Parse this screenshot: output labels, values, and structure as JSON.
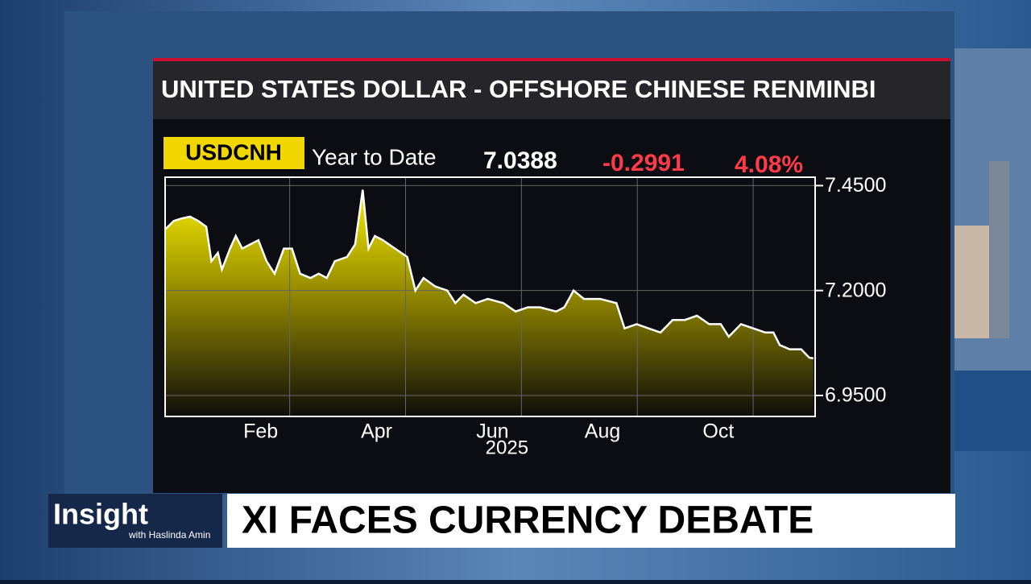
{
  "chart_data": {
    "type": "area",
    "title": "UNITED STATES DOLLAR - OFFSHORE CHINESE RENMINBI",
    "ticker": "USDCNH",
    "period": "Year to Date",
    "last": "7.0388",
    "change": "-0.2991",
    "change_pct": "4.08%",
    "xlabel": "2025",
    "x": [
      0.86,
      1.0,
      1.14,
      1.28,
      1.42,
      1.56,
      1.65,
      1.76,
      1.83,
      1.97,
      2.07,
      2.18,
      2.32,
      2.46,
      2.6,
      2.74,
      2.9,
      3.04,
      3.18,
      3.36,
      3.5,
      3.64,
      3.78,
      3.99,
      4.13,
      4.26,
      4.36,
      4.47,
      4.61,
      4.82,
      5.03,
      5.17,
      5.31,
      5.51,
      5.72,
      5.86,
      6.0,
      6.21,
      6.42,
      6.69,
      6.9,
      7.11,
      7.32,
      7.6,
      7.74,
      7.9,
      8.08,
      8.36,
      8.64,
      8.78,
      8.99,
      9.19,
      9.4,
      9.61,
      9.82,
      10.03,
      10.24,
      10.44,
      10.58,
      10.79,
      11.0,
      11.21,
      11.35,
      11.46,
      11.63,
      11.83,
      11.97,
      12.04
    ],
    "values": [
      7.347,
      7.366,
      7.372,
      7.376,
      7.366,
      7.352,
      7.27,
      7.29,
      7.25,
      7.3,
      7.33,
      7.3,
      7.31,
      7.32,
      7.27,
      7.24,
      7.3,
      7.3,
      7.24,
      7.23,
      7.24,
      7.23,
      7.27,
      7.28,
      7.31,
      7.44,
      7.3,
      7.33,
      7.32,
      7.3,
      7.28,
      7.2,
      7.23,
      7.21,
      7.2,
      7.17,
      7.19,
      7.17,
      7.18,
      7.17,
      7.15,
      7.16,
      7.16,
      7.15,
      7.16,
      7.2,
      7.18,
      7.18,
      7.17,
      7.11,
      7.12,
      7.11,
      7.1,
      7.13,
      7.13,
      7.14,
      7.12,
      7.12,
      7.09,
      7.12,
      7.11,
      7.1,
      7.1,
      7.07,
      7.06,
      7.06,
      7.04,
      7.0388
    ],
    "color": "#f2e400",
    "xlim": [
      0.85,
      12.07
    ],
    "ylim": [
      6.9,
      7.47
    ],
    "xticks": [
      {
        "value": 2.5,
        "label": "Feb"
      },
      {
        "value": 4.5,
        "label": "Apr"
      },
      {
        "value": 6.5,
        "label": "Jun"
      },
      {
        "value": 8.4,
        "label": "Aug"
      },
      {
        "value": 10.4,
        "label": "Oct"
      }
    ],
    "xgrid": [
      3,
      5,
      7,
      9,
      11
    ],
    "yticks": [
      {
        "value": 7.45,
        "label": "7.4500"
      },
      {
        "value": 7.2,
        "label": "7.2000"
      },
      {
        "value": 6.95,
        "label": "6.9500"
      }
    ],
    "grid": true
  },
  "lower_third": {
    "show": "Insight",
    "host": "with Haslinda Amin",
    "headline": "XI FACES CURRENCY DEBATE"
  }
}
